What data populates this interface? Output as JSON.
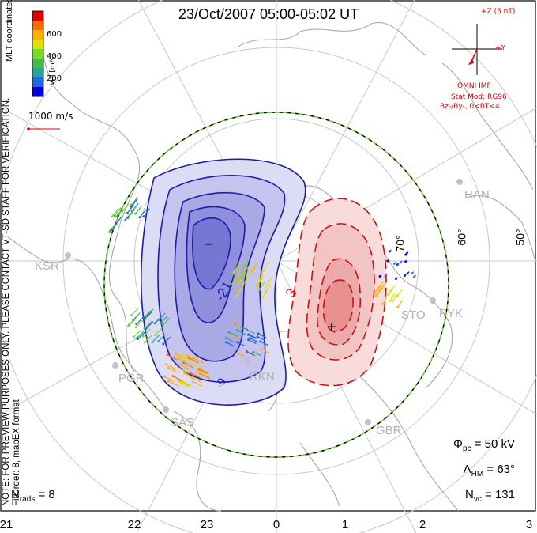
{
  "title": "23/Oct/2007 05:00-05:02 UT",
  "note": [
    "NOTE: FOR PREVIEW PURPOSES ONLY. PLEASE CONTACT VT-SD STAFF FOR VERIFICATION.",
    "FitOrder: 8, mapEX format"
  ],
  "coords": "MLT coordinates",
  "colorbar": {
    "label": "Vel [m/s]",
    "ticks": [
      "600",
      "400",
      "200"
    ],
    "colors": [
      "#e00000",
      "#ff6a00",
      "#ffb000",
      "#e0e000",
      "#77dd22",
      "#44bb44",
      "#2aa3a0",
      "#2266dd",
      "#0000e0"
    ]
  },
  "ref_vector": "1000 m/s",
  "imf": {
    "z": "+Z (5 nT)",
    "y": "+Y",
    "title": "OMNI IMF",
    "stat": "Stat Mod: RG96",
    "cond": "Bz-/By-, 0<BT<4"
  },
  "stats": {
    "phi_pc": "50 kV",
    "lambda_hm": "63°",
    "n_vc": "131",
    "n_rads": "8"
  },
  "stat_labels": {
    "phi": "Φ",
    "phi_sub": "pc",
    "lambda": "Λ",
    "lambda_sub": "HM",
    "nvc": "N",
    "nvc_sub": "vc",
    "nrads": "N",
    "nrads_sub": "rads"
  },
  "xticks": [
    "21",
    "22",
    "23",
    "0",
    "1",
    "2",
    "3"
  ],
  "latitudes": [
    "70°",
    "60°",
    "50°"
  ],
  "sites": [
    "HAN",
    "KSR",
    "STO",
    "PYK",
    "PGR",
    "RKN",
    "SAS",
    "GBR"
  ],
  "contours": {
    "neg_label": "-21",
    "pos_label": "3",
    "neg_label2": "-9",
    "min_marker": "−",
    "max_marker": "+"
  },
  "colors": {
    "neg_fill": "#5555dd",
    "neg_line": "#1c1ca8",
    "pos_fill": "#e85050",
    "pos_line": "#cc1111",
    "boundary": "#66cc33"
  }
}
